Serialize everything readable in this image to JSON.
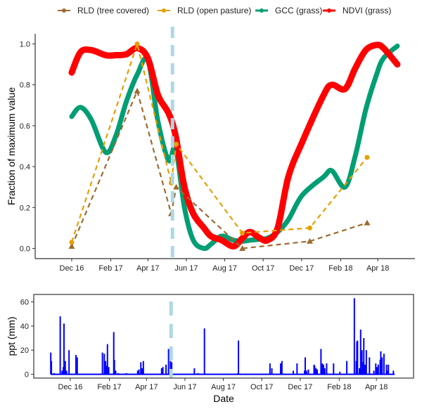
{
  "chart_data": [
    {
      "type": "line",
      "xlabel": "",
      "ylabel": "Fraction of maximum value",
      "xlim": [
        "2016-10-04",
        "2018-05-30"
      ],
      "ylim": [
        -0.05,
        1.05
      ],
      "x_ticks": [
        {
          "date": "2016-12-01",
          "label": "Dec 16"
        },
        {
          "date": "2017-02-01",
          "label": "Feb 17"
        },
        {
          "date": "2017-04-01",
          "label": "Apr 17"
        },
        {
          "date": "2017-06-01",
          "label": "Jun 17"
        },
        {
          "date": "2017-08-01",
          "label": "Aug 17"
        },
        {
          "date": "2017-10-01",
          "label": "Oct 17"
        },
        {
          "date": "2017-12-01",
          "label": "Dec 17"
        },
        {
          "date": "2018-02-01",
          "label": "Feb 18"
        },
        {
          "date": "2018-04-01",
          "label": "Apr 18"
        }
      ],
      "y_ticks": [
        0.0,
        0.2,
        0.4,
        0.6,
        0.8,
        1.0
      ],
      "y_tick_labels": [
        "0.0",
        "0.2",
        "0.4",
        "0.6",
        "0.8",
        "1.0"
      ],
      "grid": false,
      "legend_position": "top",
      "vline": {
        "date": "2017-05-10",
        "color": "#add8e6",
        "style": "dashed"
      },
      "series": [
        {
          "name": "RLD (tree covered)",
          "color": "#9c6b30",
          "style": "dashed",
          "marker": "triangle",
          "x": [
            "2016-12-01",
            "2017-03-15",
            "2017-05-08",
            "2017-05-16",
            "2017-08-29",
            "2017-12-14",
            "2018-03-15"
          ],
          "y": [
            0.01,
            0.77,
            0.17,
            0.3,
            0.0,
            0.035,
            0.125
          ]
        },
        {
          "name": "RLD (open pasture)",
          "color": "#e69f00",
          "style": "dashed",
          "marker": "circle",
          "x": [
            "2016-12-01",
            "2017-03-15",
            "2017-05-08",
            "2017-05-16",
            "2017-08-29",
            "2017-12-14",
            "2018-03-15"
          ],
          "y": [
            0.03,
            1.0,
            0.32,
            0.51,
            0.075,
            0.1,
            0.445
          ]
        },
        {
          "name": "GCC (grass)",
          "color": "#009e73",
          "style": "solid-thick",
          "x": [
            "2016-12-01",
            "2016-12-15",
            "2017-01-01",
            "2017-01-24",
            "2017-02-09",
            "2017-02-26",
            "2017-03-15",
            "2017-04-01",
            "2017-04-17",
            "2017-05-04",
            "2017-05-15",
            "2017-05-29",
            "2017-06-12",
            "2017-06-29",
            "2017-07-10",
            "2017-07-27",
            "2017-08-15",
            "2017-08-29",
            "2017-09-10",
            "2017-09-26",
            "2017-10-08",
            "2017-10-24",
            "2017-11-10",
            "2017-12-02",
            "2018-01-05",
            "2018-01-18",
            "2018-02-08",
            "2018-02-24",
            "2018-03-13",
            "2018-03-30",
            "2018-04-10",
            "2018-05-02"
          ],
          "y": [
            0.645,
            0.69,
            0.63,
            0.47,
            0.55,
            0.72,
            0.85,
            0.92,
            0.62,
            0.43,
            0.49,
            0.2,
            0.04,
            0.0,
            0.02,
            0.06,
            0.04,
            0.035,
            0.04,
            0.045,
            0.05,
            0.08,
            0.14,
            0.26,
            0.35,
            0.38,
            0.3,
            0.45,
            0.68,
            0.85,
            0.93,
            0.99
          ]
        },
        {
          "name": "NDVI (grass)",
          "color": "#ff0000",
          "style": "solid-thick",
          "x": [
            "2016-12-01",
            "2016-12-15",
            "2017-01-01",
            "2017-01-24",
            "2017-02-09",
            "2017-02-26",
            "2017-03-15",
            "2017-04-01",
            "2017-04-17",
            "2017-05-04",
            "2017-05-15",
            "2017-05-29",
            "2017-06-12",
            "2017-06-29",
            "2017-07-10",
            "2017-07-27",
            "2017-08-15",
            "2017-08-29",
            "2017-09-10",
            "2017-09-26",
            "2017-10-08",
            "2017-10-24",
            "2017-11-10",
            "2017-12-02",
            "2018-01-05",
            "2018-01-18",
            "2018-02-08",
            "2018-02-24",
            "2018-03-13",
            "2018-03-30",
            "2018-04-10",
            "2018-05-02"
          ],
          "y": [
            0.86,
            0.96,
            0.97,
            0.945,
            0.945,
            0.95,
            0.98,
            0.93,
            0.75,
            0.66,
            0.55,
            0.3,
            0.17,
            0.1,
            0.06,
            0.04,
            0.01,
            0.05,
            0.08,
            0.05,
            0.04,
            0.1,
            0.35,
            0.52,
            0.75,
            0.8,
            0.78,
            0.88,
            0.97,
            0.995,
            0.98,
            0.9
          ]
        }
      ]
    },
    {
      "type": "bar",
      "xlabel": "Date",
      "ylabel": "ppt (mm)",
      "xlim": [
        "2016-10-04",
        "2018-05-30"
      ],
      "ylim": [
        -3.15,
        66.15
      ],
      "y_ticks": [
        0,
        20,
        40,
        60
      ],
      "y_tick_labels": [
        "0",
        "20",
        "40",
        "60"
      ],
      "grid": false,
      "color": "#0000ff",
      "baseline_range": [
        "2016-10-31",
        "2018-04-30"
      ],
      "vline": {
        "date": "2017-05-10",
        "color": "#add8e6",
        "style": "dashed"
      },
      "x": [
        "2016-10-31",
        "2016-11-01",
        "2016-11-05",
        "2016-11-15",
        "2016-11-18",
        "2016-11-20",
        "2016-11-21",
        "2016-11-23",
        "2016-11-25",
        "2016-11-29",
        "2016-12-10",
        "2016-12-12",
        "2017-01-21",
        "2017-01-24",
        "2017-01-26",
        "2017-01-28",
        "2017-01-29",
        "2017-01-31",
        "2017-02-08",
        "2017-02-09",
        "2017-02-11",
        "2017-02-15",
        "2017-02-28",
        "2017-03-18",
        "2017-03-20",
        "2017-03-23",
        "2017-03-25",
        "2017-03-27",
        "2017-04-25",
        "2017-04-27",
        "2017-05-02",
        "2017-05-06",
        "2017-05-09",
        "2017-05-11",
        "2017-06-16",
        "2017-06-22",
        "2017-07-02",
        "2017-08-24",
        "2017-08-25",
        "2017-10-14",
        "2017-10-17",
        "2017-10-31",
        "2017-11-02",
        "2017-11-20",
        "2017-11-26",
        "2017-12-08",
        "2017-12-09",
        "2017-12-11",
        "2017-12-14",
        "2017-12-23",
        "2017-12-24",
        "2017-12-26",
        "2017-12-28",
        "2018-01-03",
        "2018-01-05",
        "2018-01-07",
        "2018-01-09",
        "2018-01-12",
        "2018-01-23",
        "2018-02-02",
        "2018-02-13",
        "2018-02-25",
        "2018-02-28",
        "2018-03-01",
        "2018-03-02",
        "2018-03-05",
        "2018-03-07",
        "2018-03-09",
        "2018-03-11",
        "2018-03-12",
        "2018-03-14",
        "2018-03-16",
        "2018-03-21",
        "2018-03-28",
        "2018-03-31",
        "2018-04-02",
        "2018-04-04",
        "2018-04-07",
        "2018-04-08",
        "2018-04-10",
        "2018-04-13",
        "2018-04-17",
        "2018-04-19",
        "2018-04-20",
        "2018-04-28"
      ],
      "values": [
        18,
        11,
        1,
        48,
        3,
        6,
        42,
        11,
        3,
        20,
        16,
        14,
        18,
        17,
        11,
        7,
        25,
        6,
        35,
        12,
        3,
        1,
        1,
        3,
        4,
        10,
        5,
        11,
        5,
        6,
        8,
        21,
        11,
        10,
        5,
        1,
        38,
        1,
        28,
        9,
        5,
        9,
        11,
        3,
        9,
        3,
        14,
        3,
        4,
        8,
        7,
        5,
        4,
        21,
        9,
        8,
        5,
        9,
        9,
        2,
        11,
        63,
        11,
        27,
        28,
        5,
        37,
        20,
        10,
        30,
        8,
        20,
        14,
        3,
        9,
        6,
        8,
        12,
        19,
        14,
        17,
        8,
        3,
        8,
        3
      ]
    }
  ]
}
